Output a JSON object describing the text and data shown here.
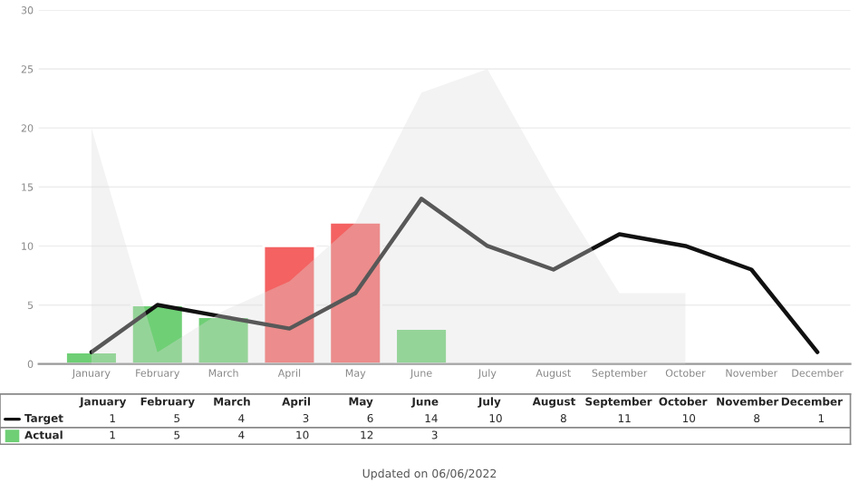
{
  "chart_data": {
    "type": "bar",
    "categories": [
      "January",
      "February",
      "March",
      "April",
      "May",
      "June",
      "July",
      "August",
      "September",
      "October",
      "November",
      "December"
    ],
    "series": [
      {
        "type": "area",
        "color": "#dddddd",
        "values": [
          20,
          1,
          4.5,
          7,
          12,
          23,
          25,
          15,
          6,
          6,
          null,
          null
        ]
      },
      {
        "name": "Actual",
        "colors": [
          "#6fcf75",
          "#6fcf75",
          "#6fcf75",
          "#f46262",
          "#f46262",
          "#6fcf75",
          null,
          null,
          null,
          null,
          null,
          null
        ],
        "values": [
          1,
          5,
          4,
          10,
          12,
          3,
          null,
          null,
          null,
          null,
          null,
          null
        ],
        "value_labels": [
          "1",
          "5",
          "4",
          "10",
          "12",
          "3",
          null,
          null,
          null,
          null,
          null,
          null
        ]
      },
      {
        "type": "line",
        "name": "Target",
        "color": "#111111",
        "values": [
          1,
          5,
          4,
          3,
          6,
          14,
          10,
          8,
          11,
          10,
          8,
          1
        ],
        "value_labels": [
          "1",
          "5",
          "4",
          "3",
          "6",
          "14",
          "10",
          "8",
          "11",
          "10",
          "8",
          "1"
        ]
      }
    ],
    "ylim": [
      0,
      30
    ],
    "yticks": [
      0,
      5,
      10,
      15,
      20,
      25,
      30
    ],
    "grid": "y",
    "legend": "bottom left",
    "annotations": [
      "Updated on 06/06/2022"
    ]
  }
}
